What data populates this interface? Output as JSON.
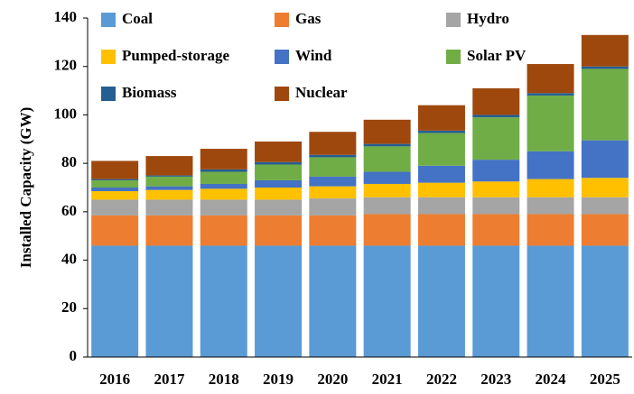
{
  "chart_data": {
    "type": "stacked_bar",
    "y_label": "Installed Capacity (GW)",
    "categories": [
      "2016",
      "2017",
      "2018",
      "2019",
      "2020",
      "2021",
      "2022",
      "2023",
      "2024",
      "2025"
    ],
    "series": [
      {
        "name": "Coal",
        "color": "#5b9bd5",
        "values": [
          46,
          46,
          46,
          46,
          46,
          46,
          46,
          46,
          46,
          46
        ]
      },
      {
        "name": "Gas",
        "color": "#ed7d31",
        "values": [
          12.5,
          12.5,
          12.5,
          12.5,
          12.5,
          13,
          13,
          13,
          13,
          13
        ]
      },
      {
        "name": "Hydro",
        "color": "#a5a5a5",
        "values": [
          6.5,
          6.5,
          6.5,
          6.5,
          7,
          7,
          7,
          7,
          7,
          7
        ]
      },
      {
        "name": "Pumped-storage",
        "color": "#ffc000",
        "values": [
          3.5,
          4,
          4.5,
          5,
          5,
          5.5,
          6,
          6.5,
          7.5,
          8
        ]
      },
      {
        "name": "Wind",
        "color": "#4472c4",
        "values": [
          1.5,
          1.5,
          2,
          3,
          4,
          5,
          7,
          9,
          11.5,
          15.5
        ]
      },
      {
        "name": "Solar PV",
        "color": "#70ad47",
        "values": [
          3,
          4,
          5,
          6.5,
          8,
          10.5,
          13.5,
          17.5,
          23,
          29.5
        ]
      },
      {
        "name": "Biomass",
        "color": "#255e91",
        "values": [
          0.5,
          0.5,
          1,
          1,
          1,
          1,
          1,
          1,
          1,
          1
        ]
      },
      {
        "name": "Nuclear",
        "color": "#9e480e",
        "values": [
          7.5,
          8,
          8.5,
          8.5,
          9.5,
          10,
          10.5,
          11,
          12,
          13
        ]
      }
    ],
    "ylim": [
      0,
      140
    ],
    "yticks": [
      0,
      20,
      40,
      60,
      80,
      100,
      120,
      140
    ],
    "legend": "upper left",
    "grid": false
  }
}
